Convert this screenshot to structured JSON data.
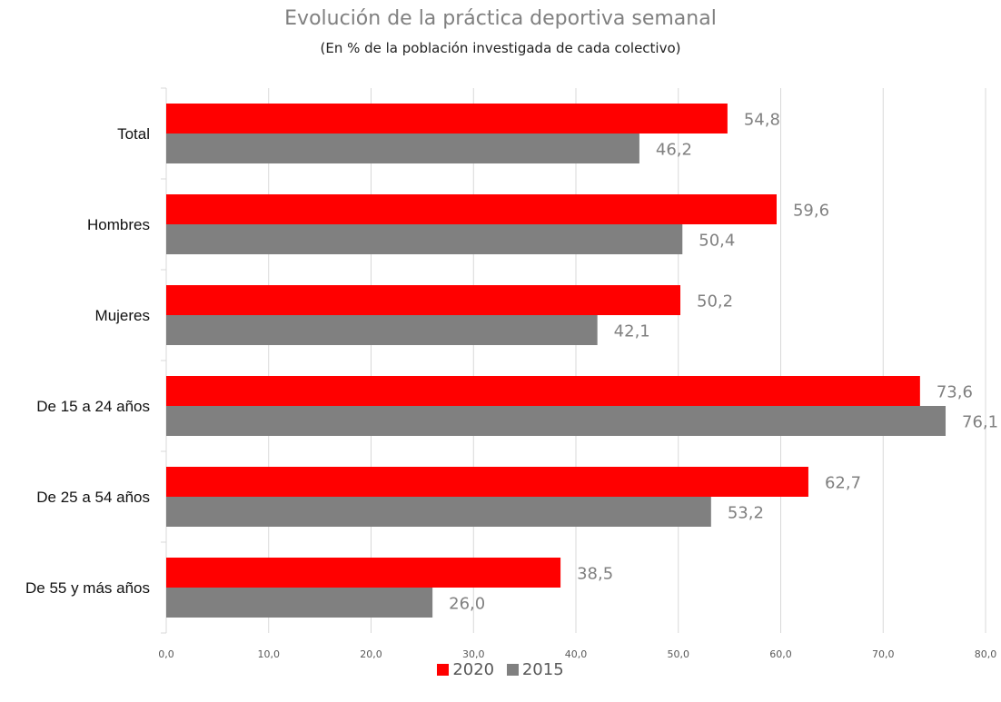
{
  "chart_data": {
    "type": "bar",
    "orientation": "horizontal",
    "title": "Evolución de la práctica deportiva semanal",
    "subtitle": "(En % de la población investigada de cada colectivo)",
    "categories": [
      "Total",
      "Hombres",
      "Mujeres",
      "De 15 a 24 años",
      "De 25 a 54 años",
      "De 55 y más años"
    ],
    "series": [
      {
        "name": "2020",
        "color": "#ff0000",
        "values": [
          54.8,
          59.6,
          50.2,
          73.6,
          62.7,
          38.5
        ]
      },
      {
        "name": "2015",
        "color": "#808080",
        "values": [
          46.2,
          50.4,
          42.1,
          76.1,
          53.2,
          26.0
        ]
      }
    ],
    "value_labels": [
      [
        "54,8",
        "59,6",
        "50,2",
        "73,6",
        "62,7",
        "38,5"
      ],
      [
        "46,2",
        "50,4",
        "42,1",
        "76,1",
        "53,2",
        "26,0"
      ]
    ],
    "xlim": [
      0,
      80
    ],
    "xticks": [
      0,
      10,
      20,
      30,
      40,
      50,
      60,
      70,
      80
    ],
    "xtick_labels": [
      "0,0",
      "10,0",
      "20,0",
      "30,0",
      "40,0",
      "50,0",
      "60,0",
      "70,0",
      "80,0"
    ],
    "grid": "vertical",
    "legend": "bottom-center"
  }
}
